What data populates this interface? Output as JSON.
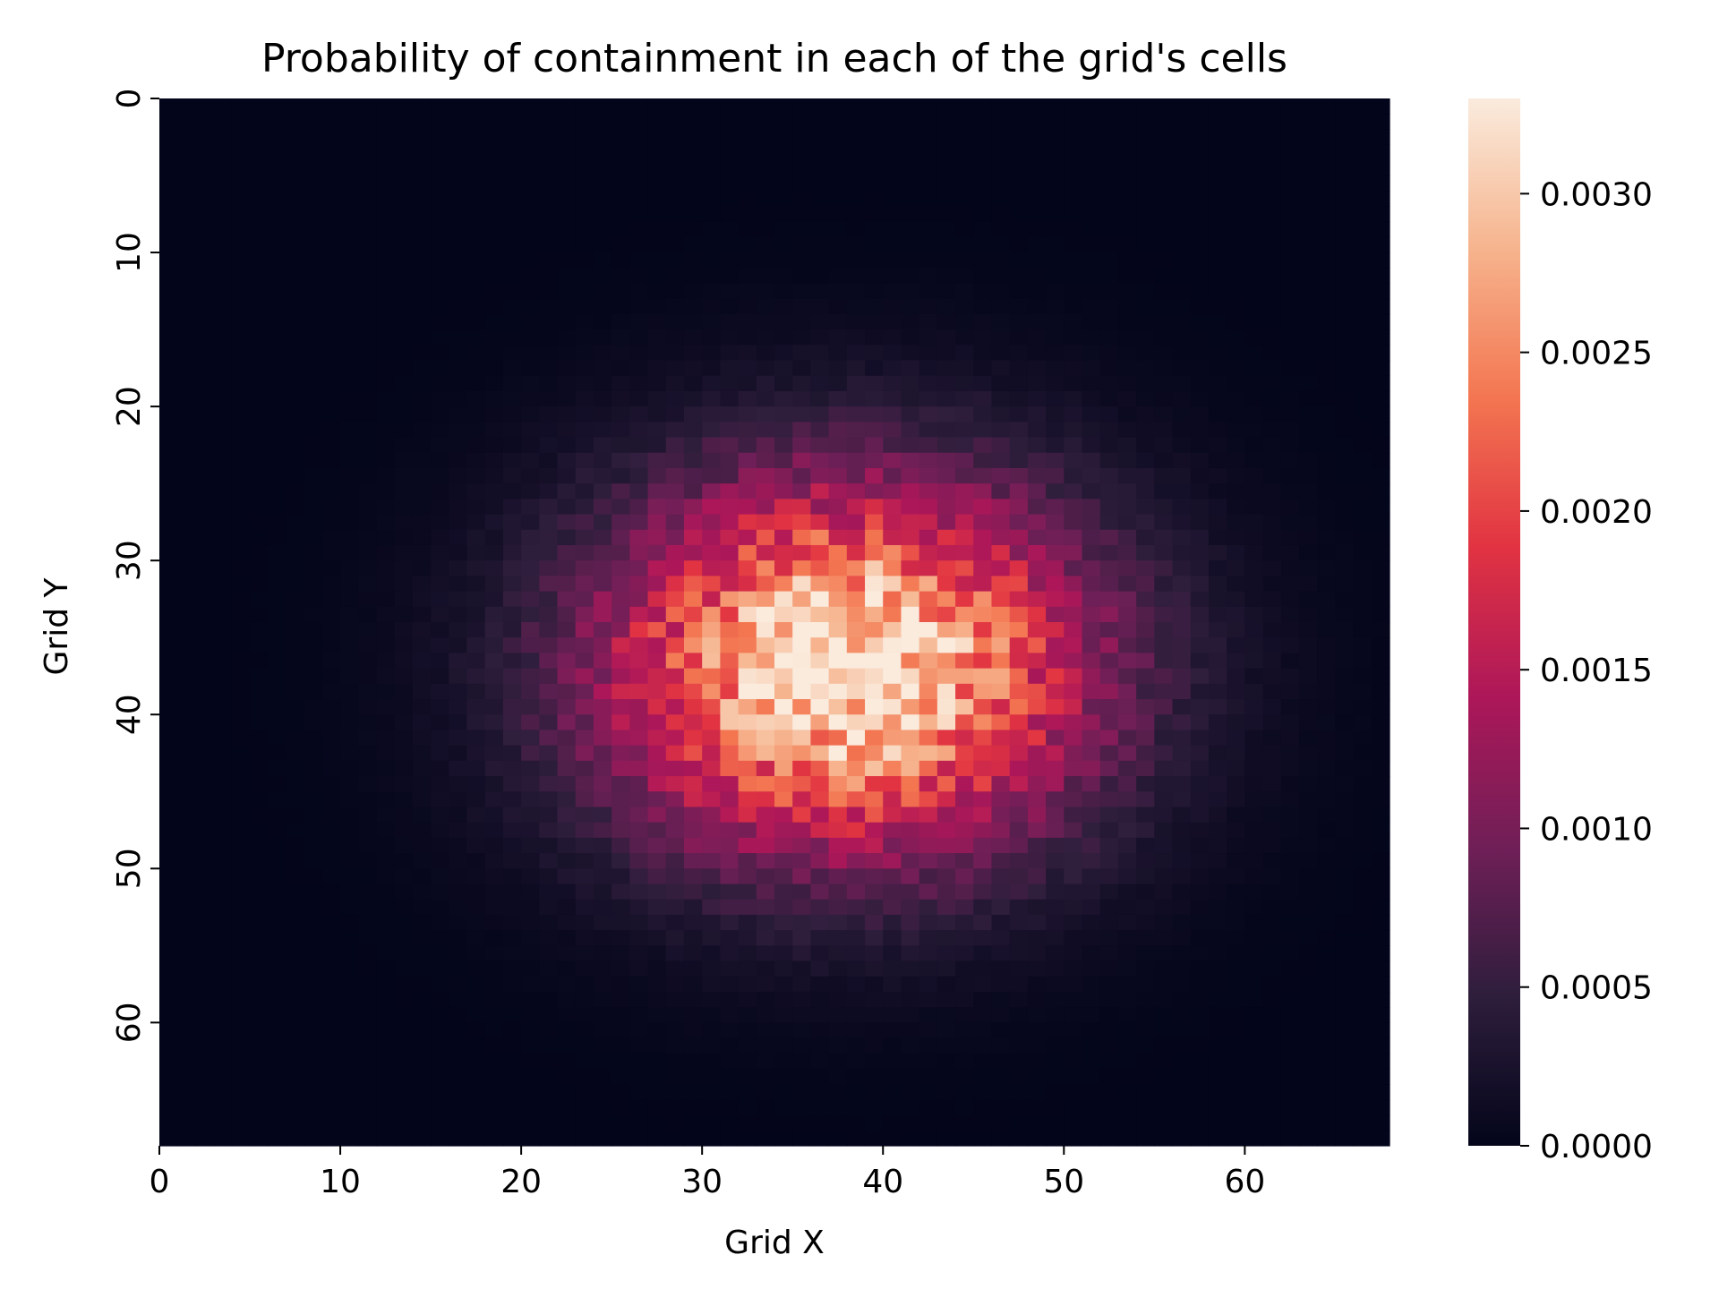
{
  "chart_data": {
    "type": "heatmap",
    "title": "Probability of containment in each of the grid's cells",
    "xlabel": "Grid X",
    "ylabel": "Grid Y",
    "grid_size": [
      68,
      68
    ],
    "xlim": [
      0,
      68
    ],
    "ylim": [
      0,
      68
    ],
    "y_axis_inverted": true,
    "x_ticks": [
      0,
      10,
      20,
      30,
      40,
      50,
      60
    ],
    "x_tick_labels": [
      "0",
      "10",
      "20",
      "30",
      "40",
      "50",
      "60"
    ],
    "y_ticks": [
      0,
      10,
      20,
      30,
      40,
      50,
      60
    ],
    "y_tick_labels": [
      "0",
      "10",
      "20",
      "30",
      "40",
      "50",
      "60"
    ],
    "peak_cell": {
      "x": 38,
      "y": 37
    },
    "peak_value": 0.0033,
    "spread_sigma": {
      "x": 9.5,
      "y": 8.5
    },
    "colormap": "rocket",
    "colormap_stops": [
      "#03051a",
      "#2e1e3c",
      "#701f57",
      "#ad1759",
      "#e13342",
      "#f37651",
      "#f6b48e",
      "#faebdd"
    ],
    "colorbar": {
      "vmin": 0.0,
      "vmax": 0.0033,
      "ticks": [
        0.0,
        0.0005,
        0.001,
        0.0015,
        0.002,
        0.0025,
        0.003
      ],
      "tick_labels": [
        "0.0000",
        "0.0005",
        "0.0010",
        "0.0015",
        "0.0020",
        "0.0025",
        "0.0030"
      ]
    }
  }
}
